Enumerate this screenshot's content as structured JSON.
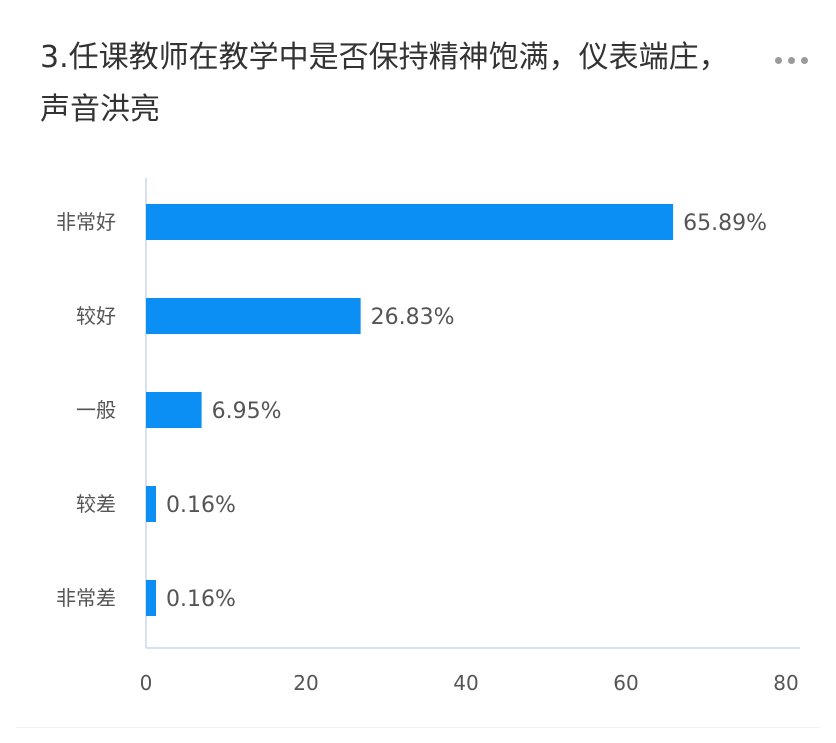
{
  "header": {
    "title": "3.任课教师在教学中是否保持精神饱满，仪表端庄，声音洪亮",
    "more_icon": "more-horizontal-icon"
  },
  "colors": {
    "bar": "#0b8ff5",
    "axis": "#c9d9ee",
    "tick_text": "#555555",
    "label_text": "#555555",
    "value_text": "#555555",
    "title_text": "#333333"
  },
  "chart_data": {
    "type": "bar",
    "orientation": "horizontal",
    "categories": [
      "非常好",
      "较好",
      "一般",
      "较差",
      "非常差"
    ],
    "values": [
      65.89,
      26.83,
      6.95,
      0.16,
      0.16
    ],
    "value_labels": [
      "65.89%",
      "26.83%",
      "6.95%",
      "0.16%",
      "0.16%"
    ],
    "xlim": [
      0,
      80
    ],
    "xticks": [
      0,
      20,
      40,
      60,
      80
    ],
    "grid": false,
    "legend": "none"
  }
}
